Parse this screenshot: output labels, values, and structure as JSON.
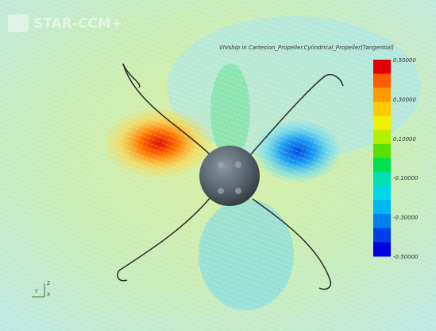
{
  "logo": "STAR-CCM+",
  "plot_title": "VIVship in Cartesion_Propeller.Cylindrical_Propeller[Tangential]",
  "colorbar": {
    "colors": [
      "#e00000",
      "#ff5a00",
      "#ff9a00",
      "#ffc800",
      "#f0f000",
      "#b4f000",
      "#5ae000",
      "#00e050",
      "#00e0b0",
      "#00d8e8",
      "#00b4f0",
      "#0080f0",
      "#0040e8",
      "#0000e0"
    ],
    "labels": [
      "0.50000",
      "0.30000",
      "0.10000",
      "-0.10000",
      "-0.30000",
      "-0.50000"
    ]
  },
  "triad": {
    "y": "Y",
    "z": "Z",
    "x": "X"
  }
}
